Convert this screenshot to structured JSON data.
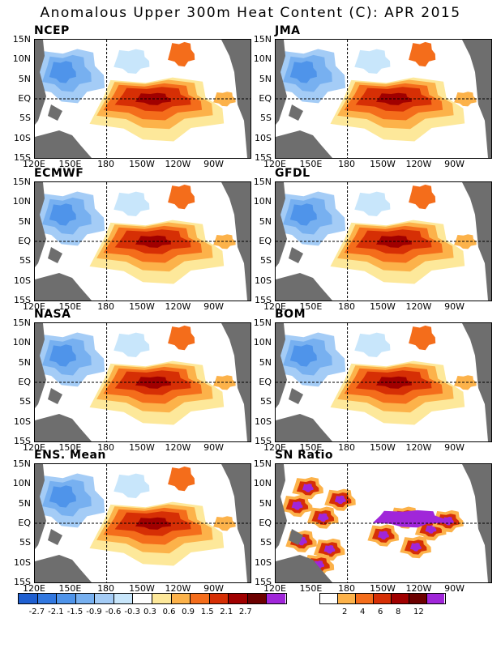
{
  "title": "Anomalous Upper 300m Heat Content (C): APR 2015",
  "lat_labels": [
    "15N",
    "10N",
    "5N",
    "EQ",
    "5S",
    "10S",
    "15S"
  ],
  "lon_labels": [
    "120E",
    "150E",
    "180",
    "150W",
    "120W",
    "90W"
  ],
  "panels": [
    {
      "title": "NCEP"
    },
    {
      "title": "JMA"
    },
    {
      "title": "ECMWF"
    },
    {
      "title": "GFDL"
    },
    {
      "title": "NASA"
    },
    {
      "title": "BOM"
    },
    {
      "title": "ENS. Mean"
    },
    {
      "title": "SN Ratio"
    }
  ],
  "legend_anomaly": {
    "labels": [
      "-2.7",
      "-2.1",
      "-1.5",
      "-0.9",
      "-0.6",
      "-0.3",
      "0.3",
      "0.6",
      "0.9",
      "1.5",
      "2.1",
      "2.7"
    ],
    "colors": [
      "#1f5fd0",
      "#3278e0",
      "#4f94ea",
      "#77b0f0",
      "#a4ccf6",
      "#c8e6fb",
      "#ffffff",
      "#fde89a",
      "#fcb24a",
      "#f46d1b",
      "#d62f05",
      "#a00000",
      "#6c0000",
      "#a026d9"
    ]
  },
  "legend_sn": {
    "labels": [
      "2",
      "4",
      "6",
      "8",
      "12"
    ],
    "colors": [
      "#ffffff",
      "#fcb24a",
      "#f46d1b",
      "#d62f05",
      "#a00000",
      "#6c0000",
      "#a026d9"
    ]
  },
  "colors": {
    "land": "#6e6e6e",
    "frame": "#000000"
  }
}
